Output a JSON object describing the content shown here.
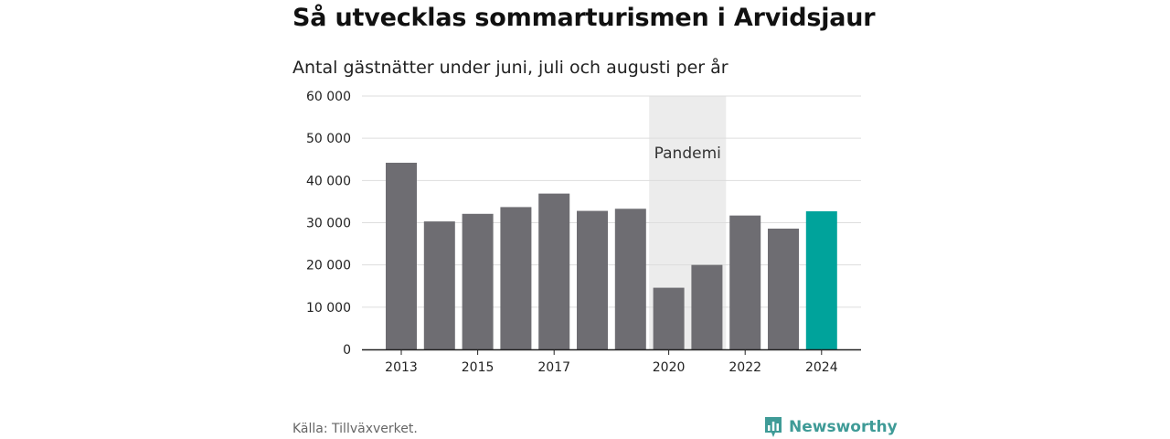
{
  "title": "Så utvecklas sommarturismen i Arvidsjaur",
  "subtitle": "Antal gästnätter under juni, juli och augusti per år",
  "source": "Källa: Tillväxverket.",
  "brand": {
    "name": "Newsworthy",
    "icon": "bar-chart-logo-icon",
    "color": "#3f9b97"
  },
  "colors": {
    "bar": "#6e6d72",
    "highlight": "#00a39b",
    "band": "#ececec",
    "grid": "#dddddd",
    "axis": "#222222"
  },
  "chart_data": {
    "type": "bar",
    "categories": [
      "2013",
      "2014",
      "2015",
      "2016",
      "2017",
      "2018",
      "2019",
      "2020",
      "2021",
      "2022",
      "2023",
      "2024"
    ],
    "values": [
      44200,
      30300,
      32100,
      33700,
      36900,
      32800,
      33300,
      14600,
      20000,
      31700,
      28600,
      32700
    ],
    "x_tick_labels": [
      "2013",
      "2015",
      "2017",
      "2020",
      "2022",
      "2024"
    ],
    "y_ticks": [
      0,
      10000,
      20000,
      30000,
      40000,
      50000,
      60000
    ],
    "y_tick_labels": [
      "0",
      "10 000",
      "20 000",
      "30 000",
      "40 000",
      "50 000",
      "60 000"
    ],
    "ylim": [
      0,
      60000
    ],
    "highlight_category": "2024",
    "annotation": {
      "label": "Pandemi",
      "from": "2020",
      "to": "2021"
    },
    "grid": true
  }
}
